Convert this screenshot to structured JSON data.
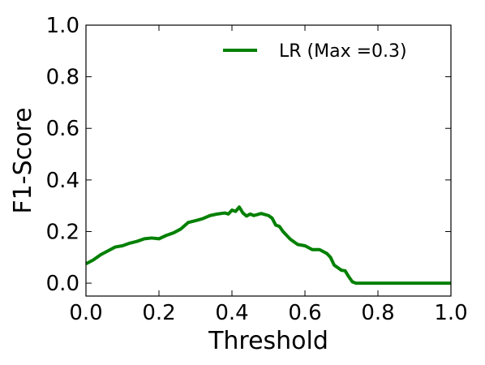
{
  "chart_data": {
    "type": "line",
    "title": "",
    "xlabel": "Threshold",
    "ylabel": "F1-Score",
    "xlim": [
      0.0,
      1.0
    ],
    "ylim": [
      -0.05,
      1.0
    ],
    "xticks": [
      "0.0",
      "0.2",
      "0.4",
      "0.6",
      "0.8",
      "1.0"
    ],
    "yticks": [
      "0.0",
      "0.2",
      "0.4",
      "0.6",
      "0.8",
      "1.0"
    ],
    "grid": false,
    "legend_position": "top-right",
    "series": [
      {
        "name": "LR (Max =0.3)",
        "color": "#008000",
        "x": [
          0.0,
          0.02,
          0.04,
          0.06,
          0.08,
          0.1,
          0.12,
          0.14,
          0.16,
          0.18,
          0.2,
          0.22,
          0.24,
          0.26,
          0.28,
          0.3,
          0.32,
          0.34,
          0.36,
          0.38,
          0.39,
          0.4,
          0.41,
          0.42,
          0.43,
          0.44,
          0.45,
          0.46,
          0.48,
          0.5,
          0.51,
          0.52,
          0.53,
          0.54,
          0.56,
          0.58,
          0.6,
          0.62,
          0.64,
          0.66,
          0.67,
          0.68,
          0.69,
          0.7,
          0.71,
          0.72,
          0.73,
          0.74,
          0.76,
          0.8,
          0.9,
          1.0
        ],
        "y": [
          0.075,
          0.09,
          0.11,
          0.125,
          0.14,
          0.145,
          0.155,
          0.162,
          0.172,
          0.175,
          0.172,
          0.185,
          0.195,
          0.21,
          0.235,
          0.242,
          0.25,
          0.262,
          0.268,
          0.272,
          0.268,
          0.283,
          0.278,
          0.295,
          0.272,
          0.26,
          0.268,
          0.262,
          0.27,
          0.262,
          0.252,
          0.225,
          0.22,
          0.2,
          0.17,
          0.15,
          0.145,
          0.13,
          0.13,
          0.115,
          0.1,
          0.07,
          0.06,
          0.05,
          0.048,
          0.025,
          0.005,
          0.0,
          0.0,
          0.0,
          0.0,
          0.0
        ]
      }
    ]
  }
}
